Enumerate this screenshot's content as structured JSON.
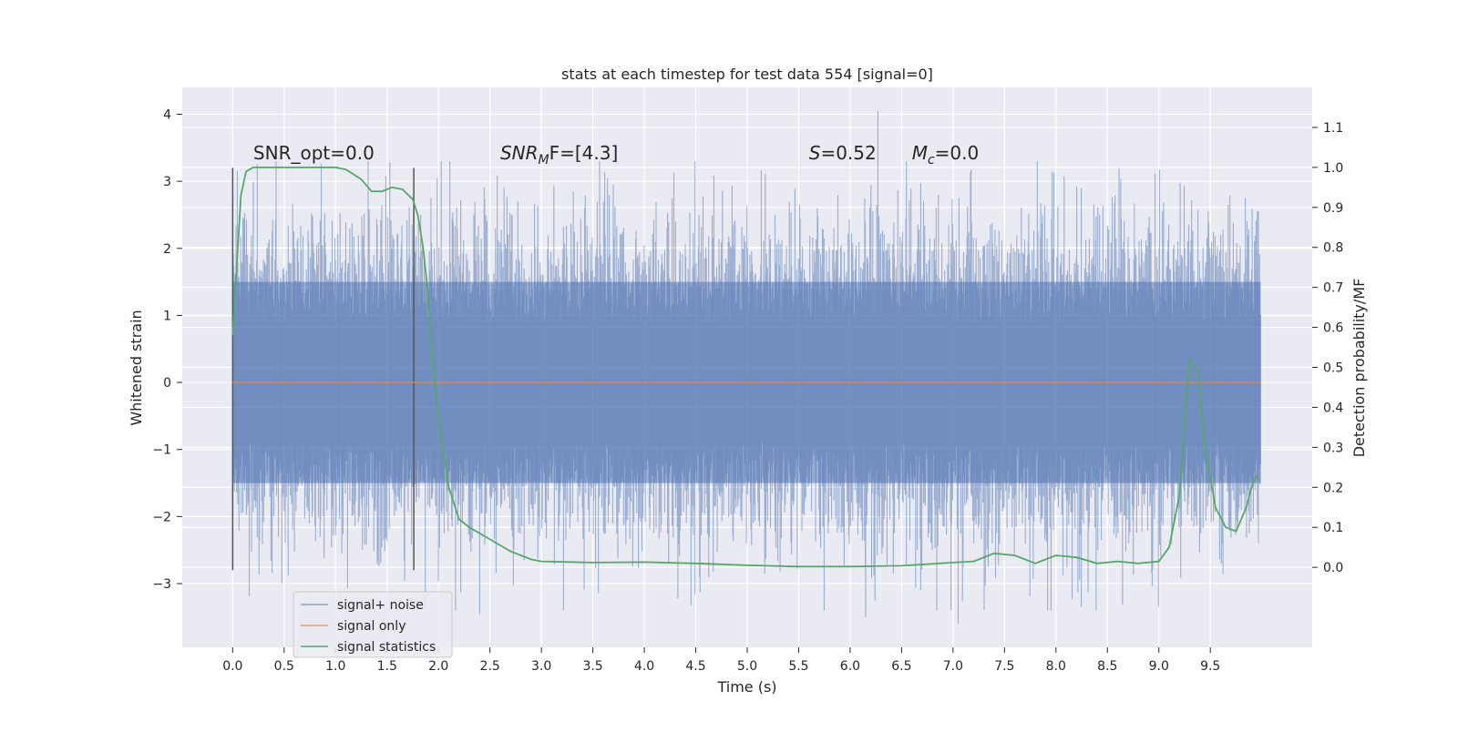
{
  "chart_data": {
    "type": "line",
    "title": "stats at each timestep for test data 554 [signal=0]",
    "xlabel": "Time (s)",
    "ylabel_left": "Whitened strain",
    "ylabel_right": "Detection probability/MF",
    "xlim": [
      -0.49,
      10.49
    ],
    "ylim_left": [
      -3.95,
      4.4
    ],
    "ylim_right": [
      -0.2,
      1.2
    ],
    "x_ticks": [
      0.0,
      0.5,
      1.0,
      1.5,
      2.0,
      2.5,
      3.0,
      3.5,
      4.0,
      4.5,
      5.0,
      5.5,
      6.0,
      6.5,
      7.0,
      7.5,
      8.0,
      8.5,
      9.0,
      9.5
    ],
    "x_tick_labels": [
      "0.0",
      "0.5",
      "1.0",
      "1.5",
      "2.0",
      "2.5",
      "3.0",
      "3.5",
      "4.0",
      "4.5",
      "5.0",
      "5.5",
      "6.0",
      "6.5",
      "7.0",
      "7.5",
      "8.0",
      "8.5",
      "9.0",
      "9.5"
    ],
    "y_left_ticks": [
      -3,
      -2,
      -1,
      0,
      1,
      2,
      3,
      4
    ],
    "y_left_tick_labels": [
      "−3",
      "−2",
      "−1",
      "0",
      "1",
      "2",
      "3",
      "4"
    ],
    "y_right_ticks": [
      0.0,
      0.1,
      0.2,
      0.3,
      0.4,
      0.5,
      0.6,
      0.7,
      0.8,
      0.9,
      1.0,
      1.1
    ],
    "y_right_tick_labels": [
      "0.0",
      "0.1",
      "0.2",
      "0.3",
      "0.4",
      "0.5",
      "0.6",
      "0.7",
      "0.8",
      "0.9",
      "1.0",
      "1.1"
    ],
    "grid": true,
    "legend_position": "lower-left",
    "series": [
      {
        "name": "signal+ noise",
        "axis": "left",
        "kind": "noise",
        "color": "#4c72b0",
        "x_range": [
          0.0,
          9.99
        ],
        "band": [
          -1.5,
          1.5
        ],
        "envelope": [
          -2.5,
          2.5
        ],
        "peaks": [
          [
            6.27,
            4.05
          ],
          [
            6.15,
            -3.5
          ],
          [
            7.05,
            -3.6
          ],
          [
            2.4,
            -3.45
          ]
        ]
      },
      {
        "name": "signal only",
        "axis": "left",
        "color": "#dd8452",
        "x": [
          0.0,
          9.99
        ],
        "y": [
          0.0,
          0.0
        ]
      },
      {
        "name": "signal statistics",
        "axis": "right",
        "color": "#55a868",
        "x": [
          0.0,
          0.08,
          0.13,
          0.2,
          0.3,
          0.5,
          0.8,
          1.0,
          1.1,
          1.25,
          1.35,
          1.45,
          1.55,
          1.65,
          1.75,
          1.8,
          1.85,
          1.9,
          1.95,
          2.0,
          2.1,
          2.2,
          2.3,
          2.5,
          2.7,
          2.9,
          3.0,
          3.5,
          4.0,
          4.5,
          5.0,
          5.5,
          6.0,
          6.5,
          7.0,
          7.2,
          7.4,
          7.6,
          7.8,
          8.0,
          8.2,
          8.4,
          8.6,
          8.8,
          9.0,
          9.1,
          9.2,
          9.25,
          9.3,
          9.38,
          9.45,
          9.55,
          9.65,
          9.75,
          9.85,
          9.9,
          9.95
        ],
        "y": [
          0.58,
          0.93,
          0.99,
          1.0,
          1.0,
          1.0,
          1.0,
          1.0,
          0.995,
          0.97,
          0.94,
          0.94,
          0.95,
          0.945,
          0.92,
          0.88,
          0.8,
          0.68,
          0.5,
          0.38,
          0.2,
          0.12,
          0.1,
          0.07,
          0.04,
          0.02,
          0.015,
          0.012,
          0.013,
          0.01,
          0.005,
          0.002,
          0.002,
          0.004,
          0.012,
          0.015,
          0.035,
          0.03,
          0.01,
          0.03,
          0.025,
          0.01,
          0.015,
          0.01,
          0.015,
          0.05,
          0.18,
          0.35,
          0.52,
          0.49,
          0.3,
          0.15,
          0.1,
          0.09,
          0.15,
          0.2,
          0.23
        ]
      }
    ],
    "vlines": [
      {
        "x": 0.0,
        "y_range": [
          -2.8,
          3.2
        ],
        "color": "#555555"
      },
      {
        "x": 1.76,
        "y_range": [
          -2.8,
          3.2
        ],
        "color": "#555555"
      }
    ],
    "annotations": [
      {
        "text": "SNR_opt=0.0",
        "x": 0.2,
        "y": 3.33
      },
      {
        "text_main": "SNR",
        "text_sub": "M",
        "text_tail": "F=[4.3]",
        "italic_prefix": true,
        "x": 2.6,
        "y": 3.33
      },
      {
        "text_main": "S",
        "text_tail": "=0.52",
        "italic_prefix": true,
        "x": 5.6,
        "y": 3.33
      },
      {
        "text_main": "M",
        "text_sub": "c",
        "text_tail": "=0.0",
        "italic_prefix": true,
        "x": 6.6,
        "y": 3.33
      }
    ]
  }
}
